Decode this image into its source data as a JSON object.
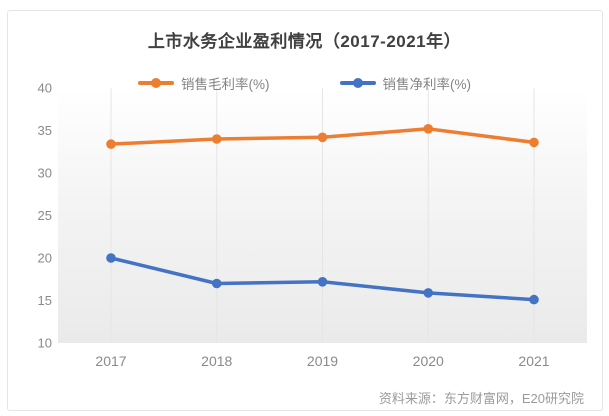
{
  "chart_data": {
    "type": "line",
    "title": "上市水务企业盈利情况（2017-2021年）",
    "categories": [
      "2017",
      "2018",
      "2019",
      "2020",
      "2021"
    ],
    "series": [
      {
        "name": "销售毛利率(%)",
        "color": "#ED7D31",
        "values": [
          33.4,
          34.0,
          34.2,
          35.2,
          33.6
        ]
      },
      {
        "name": "销售净利率(%)",
        "color": "#4472C4",
        "values": [
          20.0,
          17.0,
          17.2,
          15.9,
          15.1
        ]
      }
    ],
    "xlabel": "",
    "ylabel": "",
    "ylim": [
      10,
      40
    ],
    "yticks": [
      40,
      35,
      30,
      25,
      20,
      15,
      10
    ],
    "grid": "vertical-only",
    "legend_position": "top-center",
    "plot_background": {
      "top": "#ffffff",
      "bottom": "#eaeaea"
    },
    "gridline_color": "#e5e5e5"
  },
  "source_note": "资料来源：东方财富网，E20研究院"
}
